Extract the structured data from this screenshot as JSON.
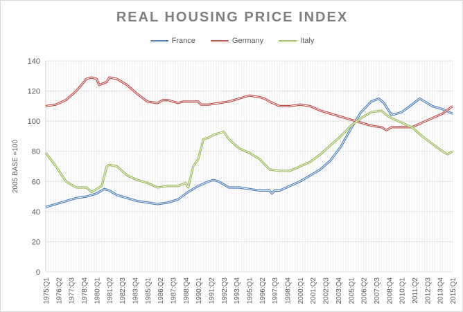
{
  "chart_data": {
    "type": "line",
    "title": "REAL HOUSING PRICE INDEX",
    "ylabel": "2005 BASE =100",
    "xlabel": "",
    "ylim": [
      0,
      140
    ],
    "yticks": [
      0,
      20,
      40,
      60,
      80,
      100,
      120,
      140
    ],
    "xlim": [
      "1975:Q1",
      "2015:Q1"
    ],
    "xtick_labels": [
      "1975:Q1",
      "1976:Q2",
      "1977:Q3",
      "1978:Q4",
      "1980:Q1",
      "1981:Q2",
      "1982:Q3",
      "1983:Q4",
      "1985:Q1",
      "1986:Q2",
      "1987:Q3",
      "1988:Q4",
      "1990:Q1",
      "1991:Q2",
      "1992:Q3",
      "1993:Q4",
      "1995:Q1",
      "1996:Q2",
      "1997:Q3",
      "1998:Q4",
      "2000:Q1",
      "2001:Q2",
      "2002:Q3",
      "2003:Q4",
      "2005:Q1",
      "2006:Q2",
      "2007:Q3",
      "2008:Q4",
      "2010:Q1",
      "2011:Q2",
      "2012:Q3",
      "2013:Q4",
      "2015:Q1"
    ],
    "grid": true,
    "legend_position": "top",
    "series": [
      {
        "name": "France",
        "color": "#4a7ebb",
        "points": [
          [
            "1975:Q1",
            43
          ],
          [
            "1976:Q1",
            45
          ],
          [
            "1977:Q1",
            47
          ],
          [
            "1978:Q1",
            49
          ],
          [
            "1979:Q1",
            50
          ],
          [
            "1980:Q1",
            52
          ],
          [
            "1980:Q4",
            55
          ],
          [
            "1981:Q2",
            54
          ],
          [
            "1982:Q1",
            51
          ],
          [
            "1983:Q1",
            49
          ],
          [
            "1984:Q1",
            47
          ],
          [
            "1985:Q1",
            46
          ],
          [
            "1986:Q1",
            45
          ],
          [
            "1987:Q1",
            46
          ],
          [
            "1988:Q1",
            48
          ],
          [
            "1989:Q1",
            53
          ],
          [
            "1990:Q1",
            57
          ],
          [
            "1991:Q1",
            60
          ],
          [
            "1991:Q3",
            61
          ],
          [
            "1992:Q1",
            60
          ],
          [
            "1993:Q1",
            56
          ],
          [
            "1994:Q1",
            56
          ],
          [
            "1995:Q1",
            55
          ],
          [
            "1996:Q1",
            54
          ],
          [
            "1997:Q1",
            54
          ],
          [
            "1997:Q2",
            52
          ],
          [
            "1997:Q3",
            54
          ],
          [
            "1998:Q1",
            54
          ],
          [
            "1999:Q1",
            57
          ],
          [
            "2000:Q1",
            60
          ],
          [
            "2001:Q1",
            64
          ],
          [
            "2002:Q1",
            68
          ],
          [
            "2003:Q1",
            74
          ],
          [
            "2004:Q1",
            83
          ],
          [
            "2005:Q1",
            95
          ],
          [
            "2006:Q1",
            106
          ],
          [
            "2007:Q1",
            113
          ],
          [
            "2007:Q4",
            115
          ],
          [
            "2008:Q2",
            112
          ],
          [
            "2009:Q1",
            104
          ],
          [
            "2010:Q1",
            106
          ],
          [
            "2011:Q1",
            111
          ],
          [
            "2011:Q4",
            115
          ],
          [
            "2012:Q2",
            113
          ],
          [
            "2013:Q1",
            110
          ],
          [
            "2014:Q1",
            108
          ],
          [
            "2015:Q1",
            105
          ]
        ]
      },
      {
        "name": "Germany",
        "color": "#be4b48",
        "points": [
          [
            "1975:Q1",
            110
          ],
          [
            "1976:Q1",
            111
          ],
          [
            "1977:Q1",
            114
          ],
          [
            "1978:Q1",
            120
          ],
          [
            "1979:Q1",
            128
          ],
          [
            "1979:Q3",
            129
          ],
          [
            "1980:Q1",
            128
          ],
          [
            "1980:Q2",
            124
          ],
          [
            "1981:Q1",
            126
          ],
          [
            "1981:Q2",
            129
          ],
          [
            "1982:Q1",
            128
          ],
          [
            "1983:Q1",
            124
          ],
          [
            "1984:Q1",
            118
          ],
          [
            "1985:Q1",
            113
          ],
          [
            "1986:Q1",
            112
          ],
          [
            "1986:Q3",
            114
          ],
          [
            "1987:Q1",
            114
          ],
          [
            "1988:Q1",
            112
          ],
          [
            "1988:Q3",
            113
          ],
          [
            "1989:Q1",
            113
          ],
          [
            "1990:Q1",
            113
          ],
          [
            "1990:Q2",
            111
          ],
          [
            "1991:Q1",
            111
          ],
          [
            "1992:Q1",
            112
          ],
          [
            "1993:Q1",
            113
          ],
          [
            "1994:Q1",
            115
          ],
          [
            "1995:Q1",
            117
          ],
          [
            "1996:Q1",
            116
          ],
          [
            "1996:Q3",
            115
          ],
          [
            "1997:Q1",
            113
          ],
          [
            "1998:Q1",
            110
          ],
          [
            "1999:Q1",
            110
          ],
          [
            "2000:Q1",
            111
          ],
          [
            "2001:Q1",
            110
          ],
          [
            "2002:Q1",
            107
          ],
          [
            "2003:Q1",
            105
          ],
          [
            "2004:Q1",
            103
          ],
          [
            "2005:Q1",
            101
          ],
          [
            "2006:Q1",
            99
          ],
          [
            "2007:Q1",
            97
          ],
          [
            "2008:Q1",
            96
          ],
          [
            "2008:Q3",
            94
          ],
          [
            "2009:Q1",
            96
          ],
          [
            "2010:Q1",
            96
          ],
          [
            "2011:Q1",
            96
          ],
          [
            "2012:Q1",
            99
          ],
          [
            "2013:Q1",
            102
          ],
          [
            "2014:Q1",
            105
          ],
          [
            "2015:Q1",
            110
          ]
        ]
      },
      {
        "name": "Italy",
        "color": "#98b954",
        "points": [
          [
            "1975:Q1",
            79
          ],
          [
            "1976:Q1",
            70
          ],
          [
            "1977:Q1",
            60
          ],
          [
            "1978:Q1",
            56
          ],
          [
            "1979:Q1",
            56
          ],
          [
            "1979:Q3",
            53
          ],
          [
            "1980:Q1",
            55
          ],
          [
            "1980:Q3",
            57
          ],
          [
            "1981:Q1",
            70
          ],
          [
            "1981:Q2",
            71
          ],
          [
            "1982:Q1",
            70
          ],
          [
            "1983:Q1",
            64
          ],
          [
            "1984:Q1",
            61
          ],
          [
            "1985:Q1",
            59
          ],
          [
            "1986:Q1",
            56
          ],
          [
            "1987:Q1",
            57
          ],
          [
            "1988:Q1",
            57
          ],
          [
            "1988:Q4",
            59
          ],
          [
            "1989:Q1",
            56
          ],
          [
            "1989:Q3",
            70
          ],
          [
            "1990:Q1",
            75
          ],
          [
            "1990:Q3",
            88
          ],
          [
            "1991:Q1",
            89
          ],
          [
            "1991:Q3",
            91
          ],
          [
            "1992:Q1",
            92
          ],
          [
            "1992:Q3",
            93
          ],
          [
            "1993:Q1",
            88
          ],
          [
            "1994:Q1",
            82
          ],
          [
            "1995:Q1",
            79
          ],
          [
            "1996:Q1",
            75
          ],
          [
            "1997:Q1",
            68
          ],
          [
            "1998:Q1",
            67
          ],
          [
            "1999:Q1",
            67
          ],
          [
            "2000:Q1",
            70
          ],
          [
            "2001:Q1",
            73
          ],
          [
            "2002:Q1",
            78
          ],
          [
            "2003:Q1",
            84
          ],
          [
            "2004:Q1",
            90
          ],
          [
            "2005:Q1",
            97
          ],
          [
            "2006:Q1",
            102
          ],
          [
            "2007:Q1",
            106
          ],
          [
            "2008:Q1",
            107
          ],
          [
            "2008:Q3",
            104
          ],
          [
            "2009:Q1",
            102
          ],
          [
            "2010:Q1",
            99
          ],
          [
            "2011:Q1",
            96
          ],
          [
            "2012:Q1",
            90
          ],
          [
            "2013:Q1",
            85
          ],
          [
            "2014:Q1",
            80
          ],
          [
            "2014:Q3",
            78
          ],
          [
            "2015:Q1",
            80
          ]
        ]
      }
    ]
  }
}
